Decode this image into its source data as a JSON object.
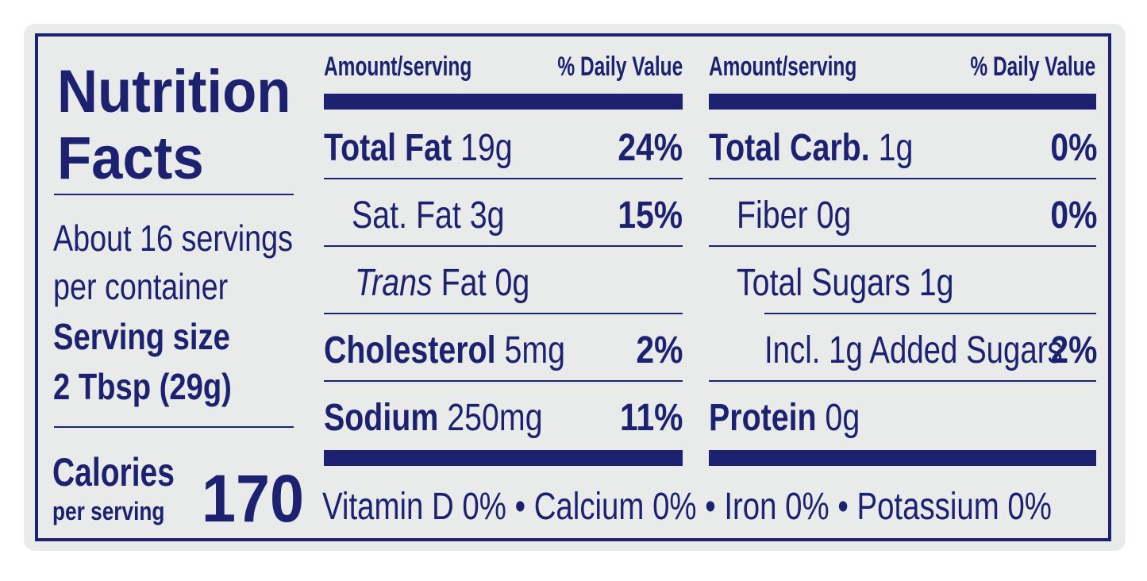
{
  "panel": {
    "title_line1": "Nutrition",
    "title_line2": "Facts",
    "servings_line1": "About 16 servings",
    "servings_line2": "per container",
    "serving_size_label": "Serving size",
    "serving_size_value": "2 Tbsp (29g)",
    "calories_label": "Calories",
    "calories_sub": "per serving",
    "calories_value": "170"
  },
  "left_column": {
    "header_amount": "Amount/serving",
    "header_dv": "% Daily Value",
    "rows": [
      {
        "label": "Total Fat",
        "amount": "19g",
        "dv": "24%"
      },
      {
        "label": "Sat. Fat 3g",
        "amount": "",
        "dv": "15%"
      },
      {
        "label": "Trans",
        "amount": "Fat 0g",
        "dv": ""
      },
      {
        "label": "Cholesterol",
        "amount": "5mg",
        "dv": "2%"
      },
      {
        "label": "Sodium",
        "amount": "250mg",
        "dv": "11%"
      }
    ]
  },
  "right_column": {
    "header_amount": "Amount/serving",
    "header_dv": "% Daily Value",
    "rows": [
      {
        "label": "Total Carb.",
        "amount": "1g",
        "dv": "0%"
      },
      {
        "label": "Fiber 0g",
        "amount": "",
        "dv": "0%"
      },
      {
        "label": "Total Sugars 1g",
        "amount": "",
        "dv": ""
      },
      {
        "label": "Incl. 1g Added Sugars",
        "amount": "",
        "dv": "2%"
      },
      {
        "label": "Protein",
        "amount": "0g",
        "dv": ""
      }
    ]
  },
  "footer": {
    "vitamins": "Vitamin D 0% • Calcium 0% • Iron 0% • Potassium 0%"
  },
  "colors": {
    "ink": "#1c2270",
    "background": "#e9eaea"
  }
}
